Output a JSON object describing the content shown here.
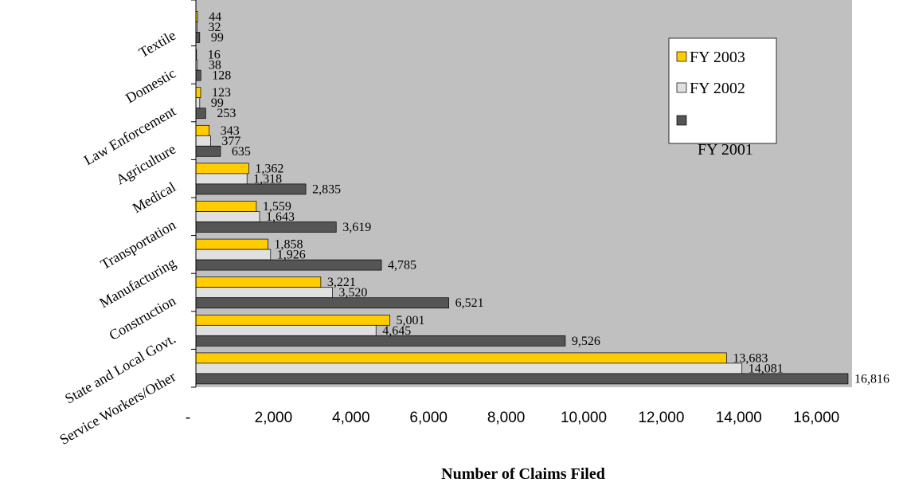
{
  "chart_data": {
    "type": "bar",
    "orientation": "horizontal",
    "title": "",
    "xlabel": "Number of Claims Filed",
    "ylabel": "",
    "xlim": [
      0,
      17000
    ],
    "x_ticks": [
      0,
      2000,
      4000,
      6000,
      8000,
      10000,
      12000,
      14000,
      16000
    ],
    "x_tick_labels": [
      "-",
      "2,000",
      "4,000",
      "6,000",
      "8,000",
      "10,000",
      "12,000",
      "14,000",
      "16,000"
    ],
    "categories": [
      "Service Workers/Other",
      "State and Local Govt.",
      "Construction",
      "Manufacturing",
      "Transportation",
      "Medical",
      "Agriculture",
      "Law Enforcement",
      "Domestic",
      "Textile"
    ],
    "series": [
      {
        "name": "FY 2003",
        "color": "#ffcc00",
        "values": [
          13683,
          5001,
          3221,
          1858,
          1559,
          1362,
          343,
          123,
          16,
          44
        ]
      },
      {
        "name": "FY 2002",
        "color": "#e0e0e0",
        "values": [
          14081,
          4645,
          3520,
          1926,
          1643,
          1318,
          377,
          99,
          38,
          32
        ]
      },
      {
        "name": "FY 2001",
        "color": "#555555",
        "values": [
          16816,
          9526,
          6521,
          4785,
          3619,
          2835,
          635,
          253,
          128,
          99
        ]
      }
    ],
    "data_labels": [
      [
        "13,683",
        "14,081",
        "16,816"
      ],
      [
        "5,001",
        "4,645",
        "9,526"
      ],
      [
        "3,221",
        "3,520",
        "6,521"
      ],
      [
        "1,858",
        "1,926",
        "4,785"
      ],
      [
        "1,559",
        "1,643",
        "3,619"
      ],
      [
        "1,362",
        "1,318",
        "2,835"
      ],
      [
        "343",
        "377",
        "635"
      ],
      [
        "123",
        "99",
        "253"
      ],
      [
        "16",
        "38",
        "128"
      ],
      [
        "44",
        "32",
        "99"
      ]
    ],
    "plot_background": "#c0c0c0",
    "grid": false,
    "legend_position": "top-right"
  }
}
